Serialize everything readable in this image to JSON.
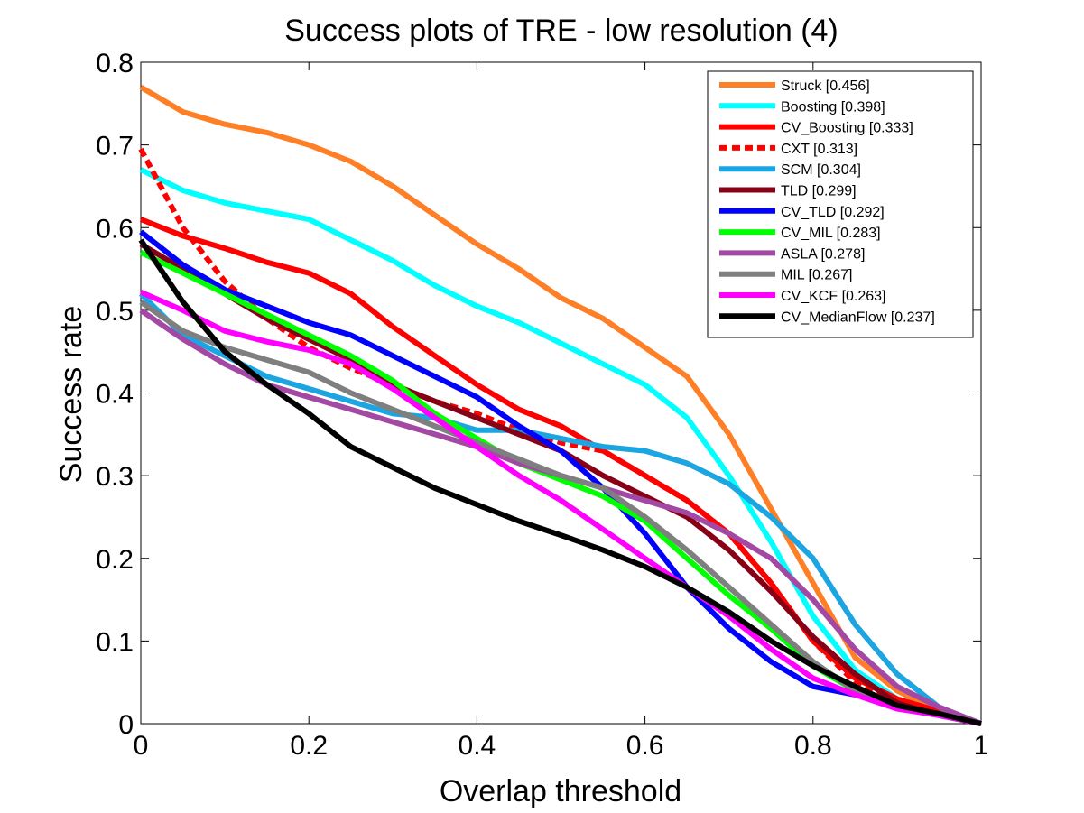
{
  "chart_data": {
    "type": "line",
    "title": "Success plots of TRE - low resolution (4)",
    "xlabel": "Overlap threshold",
    "ylabel": "Success rate",
    "xlim": [
      0,
      1
    ],
    "ylim": [
      0,
      0.8
    ],
    "xticks": [
      "0",
      "0.2",
      "0.4",
      "0.6",
      "0.8",
      "1"
    ],
    "yticks": [
      "0",
      "0.1",
      "0.2",
      "0.3",
      "0.4",
      "0.5",
      "0.6",
      "0.7",
      "0.8"
    ],
    "grid": false,
    "legend_position": "top-right",
    "x": [
      0,
      0.05,
      0.1,
      0.15,
      0.2,
      0.25,
      0.3,
      0.35,
      0.4,
      0.45,
      0.5,
      0.55,
      0.6,
      0.65,
      0.7,
      0.75,
      0.8,
      0.85,
      0.9,
      0.95,
      1.0
    ],
    "series": [
      {
        "name": "Struck [0.456]",
        "color": "#FF7F27",
        "dashed": false,
        "values": [
          0.77,
          0.74,
          0.725,
          0.715,
          0.7,
          0.68,
          0.65,
          0.615,
          0.58,
          0.55,
          0.515,
          0.49,
          0.455,
          0.42,
          0.35,
          0.26,
          0.17,
          0.08,
          0.04,
          0.015,
          0.0
        ]
      },
      {
        "name": "Boosting [0.398]",
        "color": "#00FFFF",
        "dashed": false,
        "values": [
          0.67,
          0.645,
          0.63,
          0.62,
          0.61,
          0.585,
          0.56,
          0.53,
          0.505,
          0.485,
          0.46,
          0.435,
          0.41,
          0.37,
          0.3,
          0.22,
          0.13,
          0.065,
          0.03,
          0.015,
          0.0
        ]
      },
      {
        "name": "CV_Boosting [0.333]",
        "color": "#FF0000",
        "dashed": false,
        "values": [
          0.61,
          0.59,
          0.575,
          0.558,
          0.545,
          0.52,
          0.48,
          0.445,
          0.41,
          0.38,
          0.36,
          0.33,
          0.3,
          0.27,
          0.23,
          0.17,
          0.1,
          0.055,
          0.03,
          0.015,
          0.0
        ]
      },
      {
        "name": "CXT [0.313]",
        "color": "#FF0000",
        "dashed": true,
        "values": [
          0.695,
          0.6,
          0.535,
          0.49,
          0.455,
          0.43,
          0.41,
          0.39,
          0.375,
          0.355,
          0.34,
          0.33,
          0.3,
          0.27,
          0.23,
          0.17,
          0.1,
          0.05,
          0.025,
          0.012,
          0.0
        ]
      },
      {
        "name": "SCM [0.304]",
        "color": "#1CA5E0",
        "dashed": false,
        "values": [
          0.52,
          0.47,
          0.445,
          0.42,
          0.405,
          0.39,
          0.375,
          0.37,
          0.355,
          0.355,
          0.345,
          0.335,
          0.33,
          0.315,
          0.29,
          0.25,
          0.2,
          0.12,
          0.06,
          0.02,
          0.0
        ]
      },
      {
        "name": "TLD [0.299]",
        "color": "#880015",
        "dashed": false,
        "values": [
          0.58,
          0.55,
          0.52,
          0.49,
          0.465,
          0.44,
          0.41,
          0.39,
          0.37,
          0.35,
          0.33,
          0.3,
          0.275,
          0.25,
          0.21,
          0.16,
          0.105,
          0.06,
          0.025,
          0.01,
          0.0
        ]
      },
      {
        "name": "CV_TLD [0.292]",
        "color": "#0000FF",
        "dashed": false,
        "values": [
          0.595,
          0.555,
          0.525,
          0.505,
          0.485,
          0.47,
          0.445,
          0.42,
          0.395,
          0.36,
          0.33,
          0.285,
          0.23,
          0.165,
          0.115,
          0.075,
          0.045,
          0.035,
          0.02,
          0.01,
          0.0
        ]
      },
      {
        "name": "CV_MIL [0.283]",
        "color": "#00FF00",
        "dashed": false,
        "values": [
          0.57,
          0.545,
          0.52,
          0.495,
          0.47,
          0.445,
          0.415,
          0.375,
          0.345,
          0.315,
          0.295,
          0.275,
          0.245,
          0.2,
          0.155,
          0.115,
          0.07,
          0.04,
          0.02,
          0.01,
          0.0
        ]
      },
      {
        "name": "ASLA [0.278]",
        "color": "#A349A4",
        "dashed": false,
        "values": [
          0.5,
          0.465,
          0.435,
          0.41,
          0.395,
          0.38,
          0.365,
          0.35,
          0.335,
          0.315,
          0.3,
          0.285,
          0.27,
          0.255,
          0.23,
          0.2,
          0.15,
          0.09,
          0.045,
          0.02,
          0.0
        ]
      },
      {
        "name": "MIL [0.267]",
        "color": "#7F7F7F",
        "dashed": false,
        "values": [
          0.51,
          0.475,
          0.455,
          0.44,
          0.425,
          0.4,
          0.38,
          0.36,
          0.34,
          0.32,
          0.3,
          0.285,
          0.25,
          0.21,
          0.165,
          0.12,
          0.075,
          0.04,
          0.02,
          0.01,
          0.0
        ]
      },
      {
        "name": "CV_KCF [0.263]",
        "color": "#FF00FF",
        "dashed": false,
        "values": [
          0.522,
          0.5,
          0.475,
          0.462,
          0.452,
          0.435,
          0.405,
          0.37,
          0.335,
          0.3,
          0.27,
          0.235,
          0.2,
          0.165,
          0.13,
          0.09,
          0.055,
          0.035,
          0.018,
          0.01,
          0.0
        ]
      },
      {
        "name": "CV_MedianFlow [0.237]",
        "color": "#000000",
        "dashed": false,
        "values": [
          0.585,
          0.51,
          0.45,
          0.41,
          0.375,
          0.335,
          0.31,
          0.285,
          0.265,
          0.245,
          0.228,
          0.21,
          0.19,
          0.165,
          0.135,
          0.1,
          0.07,
          0.045,
          0.022,
          0.012,
          0.0
        ]
      }
    ]
  }
}
